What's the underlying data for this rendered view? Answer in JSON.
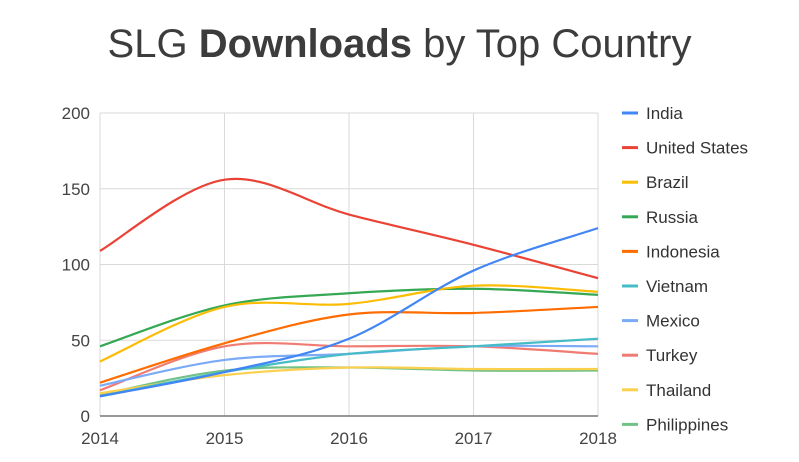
{
  "chart_data": {
    "type": "line",
    "title_parts": {
      "pre": "SLG ",
      "bold": "Downloads",
      "post": " by Top Country"
    },
    "xlabel": "",
    "ylabel": "",
    "x": [
      "2014",
      "2015",
      "2016",
      "2017",
      "2018"
    ],
    "ylim": [
      0,
      200
    ],
    "yticks": [
      "0",
      "50",
      "100",
      "150",
      "200"
    ],
    "grid": true,
    "legend": "right",
    "series": [
      {
        "name": "India",
        "color": "#4285F4",
        "values": [
          13,
          29,
          51,
          96,
          124
        ]
      },
      {
        "name": "United States",
        "color": "#EA4335",
        "values": [
          109,
          156,
          133,
          113,
          91
        ]
      },
      {
        "name": "Brazil",
        "color": "#FBBC04",
        "values": [
          36,
          72,
          74,
          86,
          82
        ]
      },
      {
        "name": "Russia",
        "color": "#34A853",
        "values": [
          46,
          73,
          81,
          84,
          80
        ]
      },
      {
        "name": "Indonesia",
        "color": "#FF6D01",
        "values": [
          22,
          48,
          67,
          68,
          72
        ]
      },
      {
        "name": "Vietnam",
        "color": "#46BDC6",
        "values": [
          13,
          29,
          41,
          46,
          51
        ]
      },
      {
        "name": "Mexico",
        "color": "#7BAAF7",
        "values": [
          20,
          37,
          41,
          46,
          46
        ]
      },
      {
        "name": "Turkey",
        "color": "#F07B72",
        "values": [
          17,
          46,
          46,
          46,
          41
        ]
      },
      {
        "name": "Thailand",
        "color": "#FCD04F",
        "values": [
          15,
          27,
          32,
          31,
          31
        ]
      },
      {
        "name": "Philippines",
        "color": "#71C287",
        "values": [
          14,
          30,
          32,
          30,
          30
        ]
      }
    ]
  }
}
